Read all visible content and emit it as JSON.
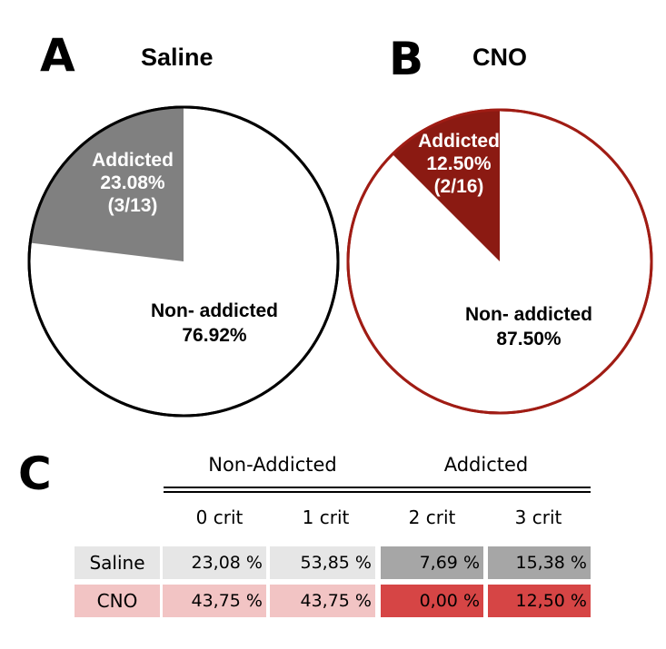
{
  "panel_a": {
    "letter": "A",
    "title": "Saline"
  },
  "panel_b": {
    "letter": "B",
    "title": "CNO"
  },
  "panel_c": {
    "letter": "C"
  },
  "chart_data": [
    {
      "type": "pie",
      "title": "Saline",
      "slices": [
        {
          "label": "Addicted",
          "value": 23.08,
          "percent_label": "23.08%",
          "count_label": "(3/13)",
          "color": "#808080"
        },
        {
          "label": "Non- addicted",
          "value": 76.92,
          "percent_label": "76.92%",
          "color": "#ffffff"
        }
      ]
    },
    {
      "type": "pie",
      "title": "CNO",
      "slices": [
        {
          "label": "Addicted",
          "value": 12.5,
          "percent_label": "12.50%",
          "count_label": "(2/16)",
          "color": "#8b1a12"
        },
        {
          "label": "Non- addicted",
          "value": 87.5,
          "percent_label": "87.50%",
          "color": "#ffffff"
        }
      ],
      "outline_color": "#a01c14"
    },
    {
      "type": "table",
      "groups": [
        {
          "label": "Non-Addicted",
          "span": 2
        },
        {
          "label": "Addicted",
          "span": 2
        }
      ],
      "columns": [
        "0 crit",
        "1 crit",
        "2 crit",
        "3 crit"
      ],
      "rows": [
        {
          "label": "Saline",
          "values": [
            "23,08 %",
            "53,85 %",
            "7,69 %",
            "15,38 %"
          ],
          "label_bg": "#e6e6e6",
          "cell_bg": [
            "#e6e6e6",
            "#e6e6e6",
            "#a6a6a6",
            "#a6a6a6"
          ]
        },
        {
          "label": "CNO",
          "values": [
            "43,75 %",
            "43,75 %",
            "0,00 %",
            "12,50 %"
          ],
          "label_bg": "#f2c4c4",
          "cell_bg": [
            "#f2c4c4",
            "#f2c4c4",
            "#d64545",
            "#d64545"
          ]
        }
      ]
    }
  ]
}
